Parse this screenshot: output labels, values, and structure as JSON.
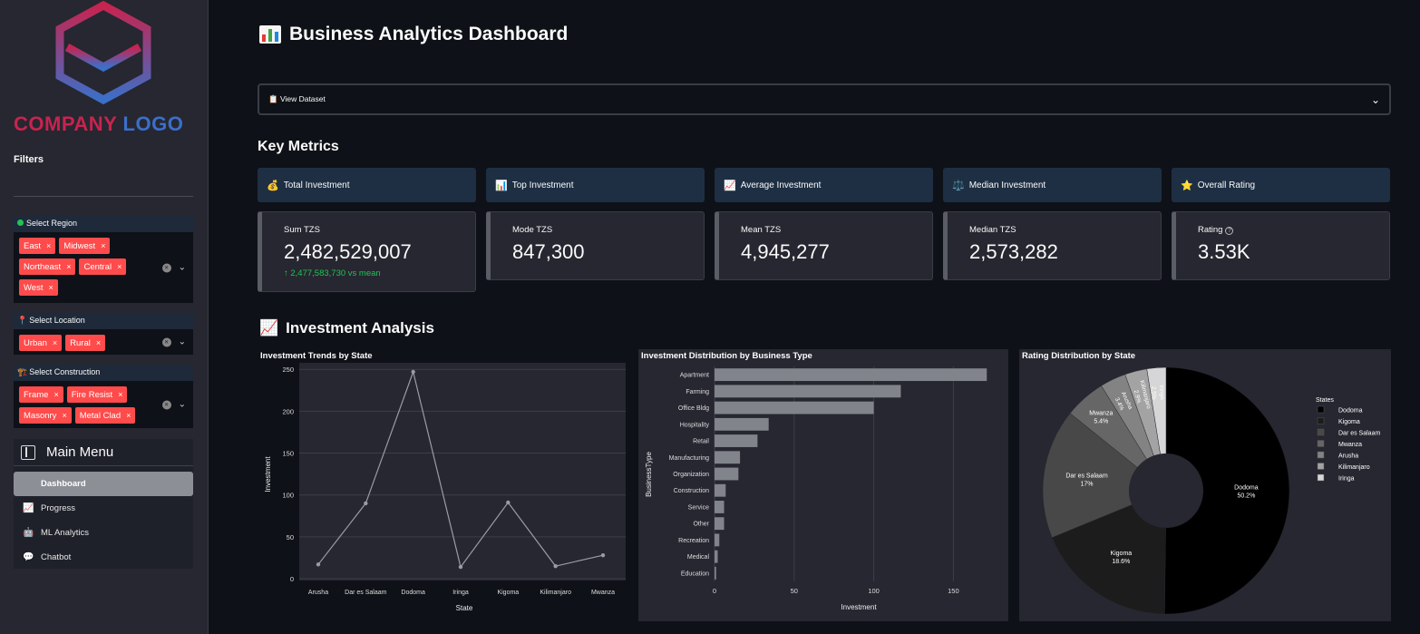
{
  "sidebar": {
    "logo": {
      "word1": "COMPANY",
      "word2": "LOGO"
    },
    "filters_title": "Filters",
    "region": {
      "label": "Select Region",
      "icon": "green-circle-icon",
      "tags": [
        "East",
        "Midwest",
        "Northeast",
        "Central",
        "West"
      ]
    },
    "location": {
      "label": "Select Location",
      "icon": "pin-icon",
      "tags": [
        "Urban",
        "Rural"
      ]
    },
    "construction": {
      "label": "Select Construction",
      "icon": "construction-icon",
      "tags": [
        "Frame",
        "Fire Resist",
        "Masonry",
        "Metal Clad"
      ]
    },
    "menu": {
      "title": "Main Menu",
      "items": [
        {
          "label": "Dashboard",
          "icon": "home-icon",
          "active": true
        },
        {
          "label": "Progress",
          "icon": "chart-line-icon",
          "active": false
        },
        {
          "label": "ML Analytics",
          "icon": "robot-icon",
          "active": false
        },
        {
          "label": "Chatbot",
          "icon": "chat-icon",
          "active": false
        }
      ]
    }
  },
  "header": {
    "title": "Business Analytics Dashboard",
    "icon": "bar-chart-icon"
  },
  "expander": {
    "label": "📋 View Dataset"
  },
  "key_metrics": {
    "title": "Key Metrics",
    "cards": [
      {
        "head": "Total Investment",
        "icon": "💰",
        "label": "Sum TZS",
        "value": "2,482,529,007",
        "delta": "↑ 2,477,583,730 vs mean"
      },
      {
        "head": "Top Investment",
        "icon": "📊",
        "label": "Mode TZS",
        "value": "847,300",
        "delta": ""
      },
      {
        "head": "Average Investment",
        "icon": "📈",
        "label": "Mean TZS",
        "value": "4,945,277",
        "delta": ""
      },
      {
        "head": "Median Investment",
        "icon": "⚖️",
        "label": "Median TZS",
        "value": "2,573,282",
        "delta": ""
      },
      {
        "head": "Overall Rating",
        "icon": "⭐",
        "label": "Rating",
        "value": "3.53K",
        "delta": ""
      }
    ]
  },
  "analysis": {
    "title": "Investment Analysis",
    "icon": "📈"
  },
  "chart_data": [
    {
      "type": "line",
      "title": "Investment Trends by State",
      "xlabel": "State",
      "ylabel": "Investment",
      "categories": [
        "Arusha",
        "Dar es Salaam",
        "Dodoma",
        "Iringa",
        "Kigoma",
        "Kilimanjaro",
        "Mwanza"
      ],
      "values": [
        17,
        90,
        247,
        14,
        91,
        15,
        28
      ],
      "ylim": [
        0,
        260
      ],
      "yticks": [
        0,
        50,
        100,
        150,
        200,
        250
      ],
      "grid": true,
      "color": "#9a9ca3"
    },
    {
      "type": "bar",
      "orientation": "horizontal",
      "title": "Investment Distribution by Business Type",
      "xlabel": "Investment",
      "ylabel": "BusinessType",
      "categories": [
        "Apartment",
        "Farming",
        "Office Bldg",
        "Hospitality",
        "Retail",
        "Manufacturing",
        "Organization",
        "Construction",
        "Service",
        "Other",
        "Recreation",
        "Medical",
        "Education"
      ],
      "values": [
        171,
        117,
        100,
        34,
        27,
        16,
        15,
        7,
        6,
        6,
        3,
        2,
        1
      ],
      "xlim": [
        0,
        172
      ],
      "xticks": [
        0,
        50,
        100,
        150
      ],
      "grid": true,
      "color": "#82848b"
    },
    {
      "type": "pie",
      "title": "Rating Distribution by State",
      "legend_title": "States",
      "legend_position": "right",
      "hole": 0.3,
      "slices": [
        {
          "label": "Dodoma",
          "value": 50.2,
          "color": "#000000"
        },
        {
          "label": "Kigoma",
          "value": 18.6,
          "color": "#1c1c1c"
        },
        {
          "label": "Dar es Salaam",
          "value": 17,
          "color": "#484848"
        },
        {
          "label": "Mwanza",
          "value": 5.4,
          "color": "#666666"
        },
        {
          "label": "Arusha",
          "value": 3.4,
          "color": "#838383"
        },
        {
          "label": "Kilimanjaro",
          "value": 2.9,
          "color": "#a3a3a3"
        },
        {
          "label": "Iringa",
          "value": 2.5,
          "color": "#d6d6d6"
        }
      ],
      "slice_labels": [
        {
          "name": "Dodoma",
          "pct": "50.2%"
        },
        {
          "name": "Kigoma",
          "pct": "18.6%"
        },
        {
          "name": "Dar es Salaam",
          "pct": "17%"
        },
        {
          "name": "Mwanza",
          "pct": "5.4%"
        },
        {
          "name": "Arusha",
          "pct": "3.4%"
        },
        {
          "name": "Kilimanjaro",
          "pct": "2.9%"
        },
        {
          "name": "Iringa",
          "pct": "2.5%"
        }
      ]
    }
  ]
}
